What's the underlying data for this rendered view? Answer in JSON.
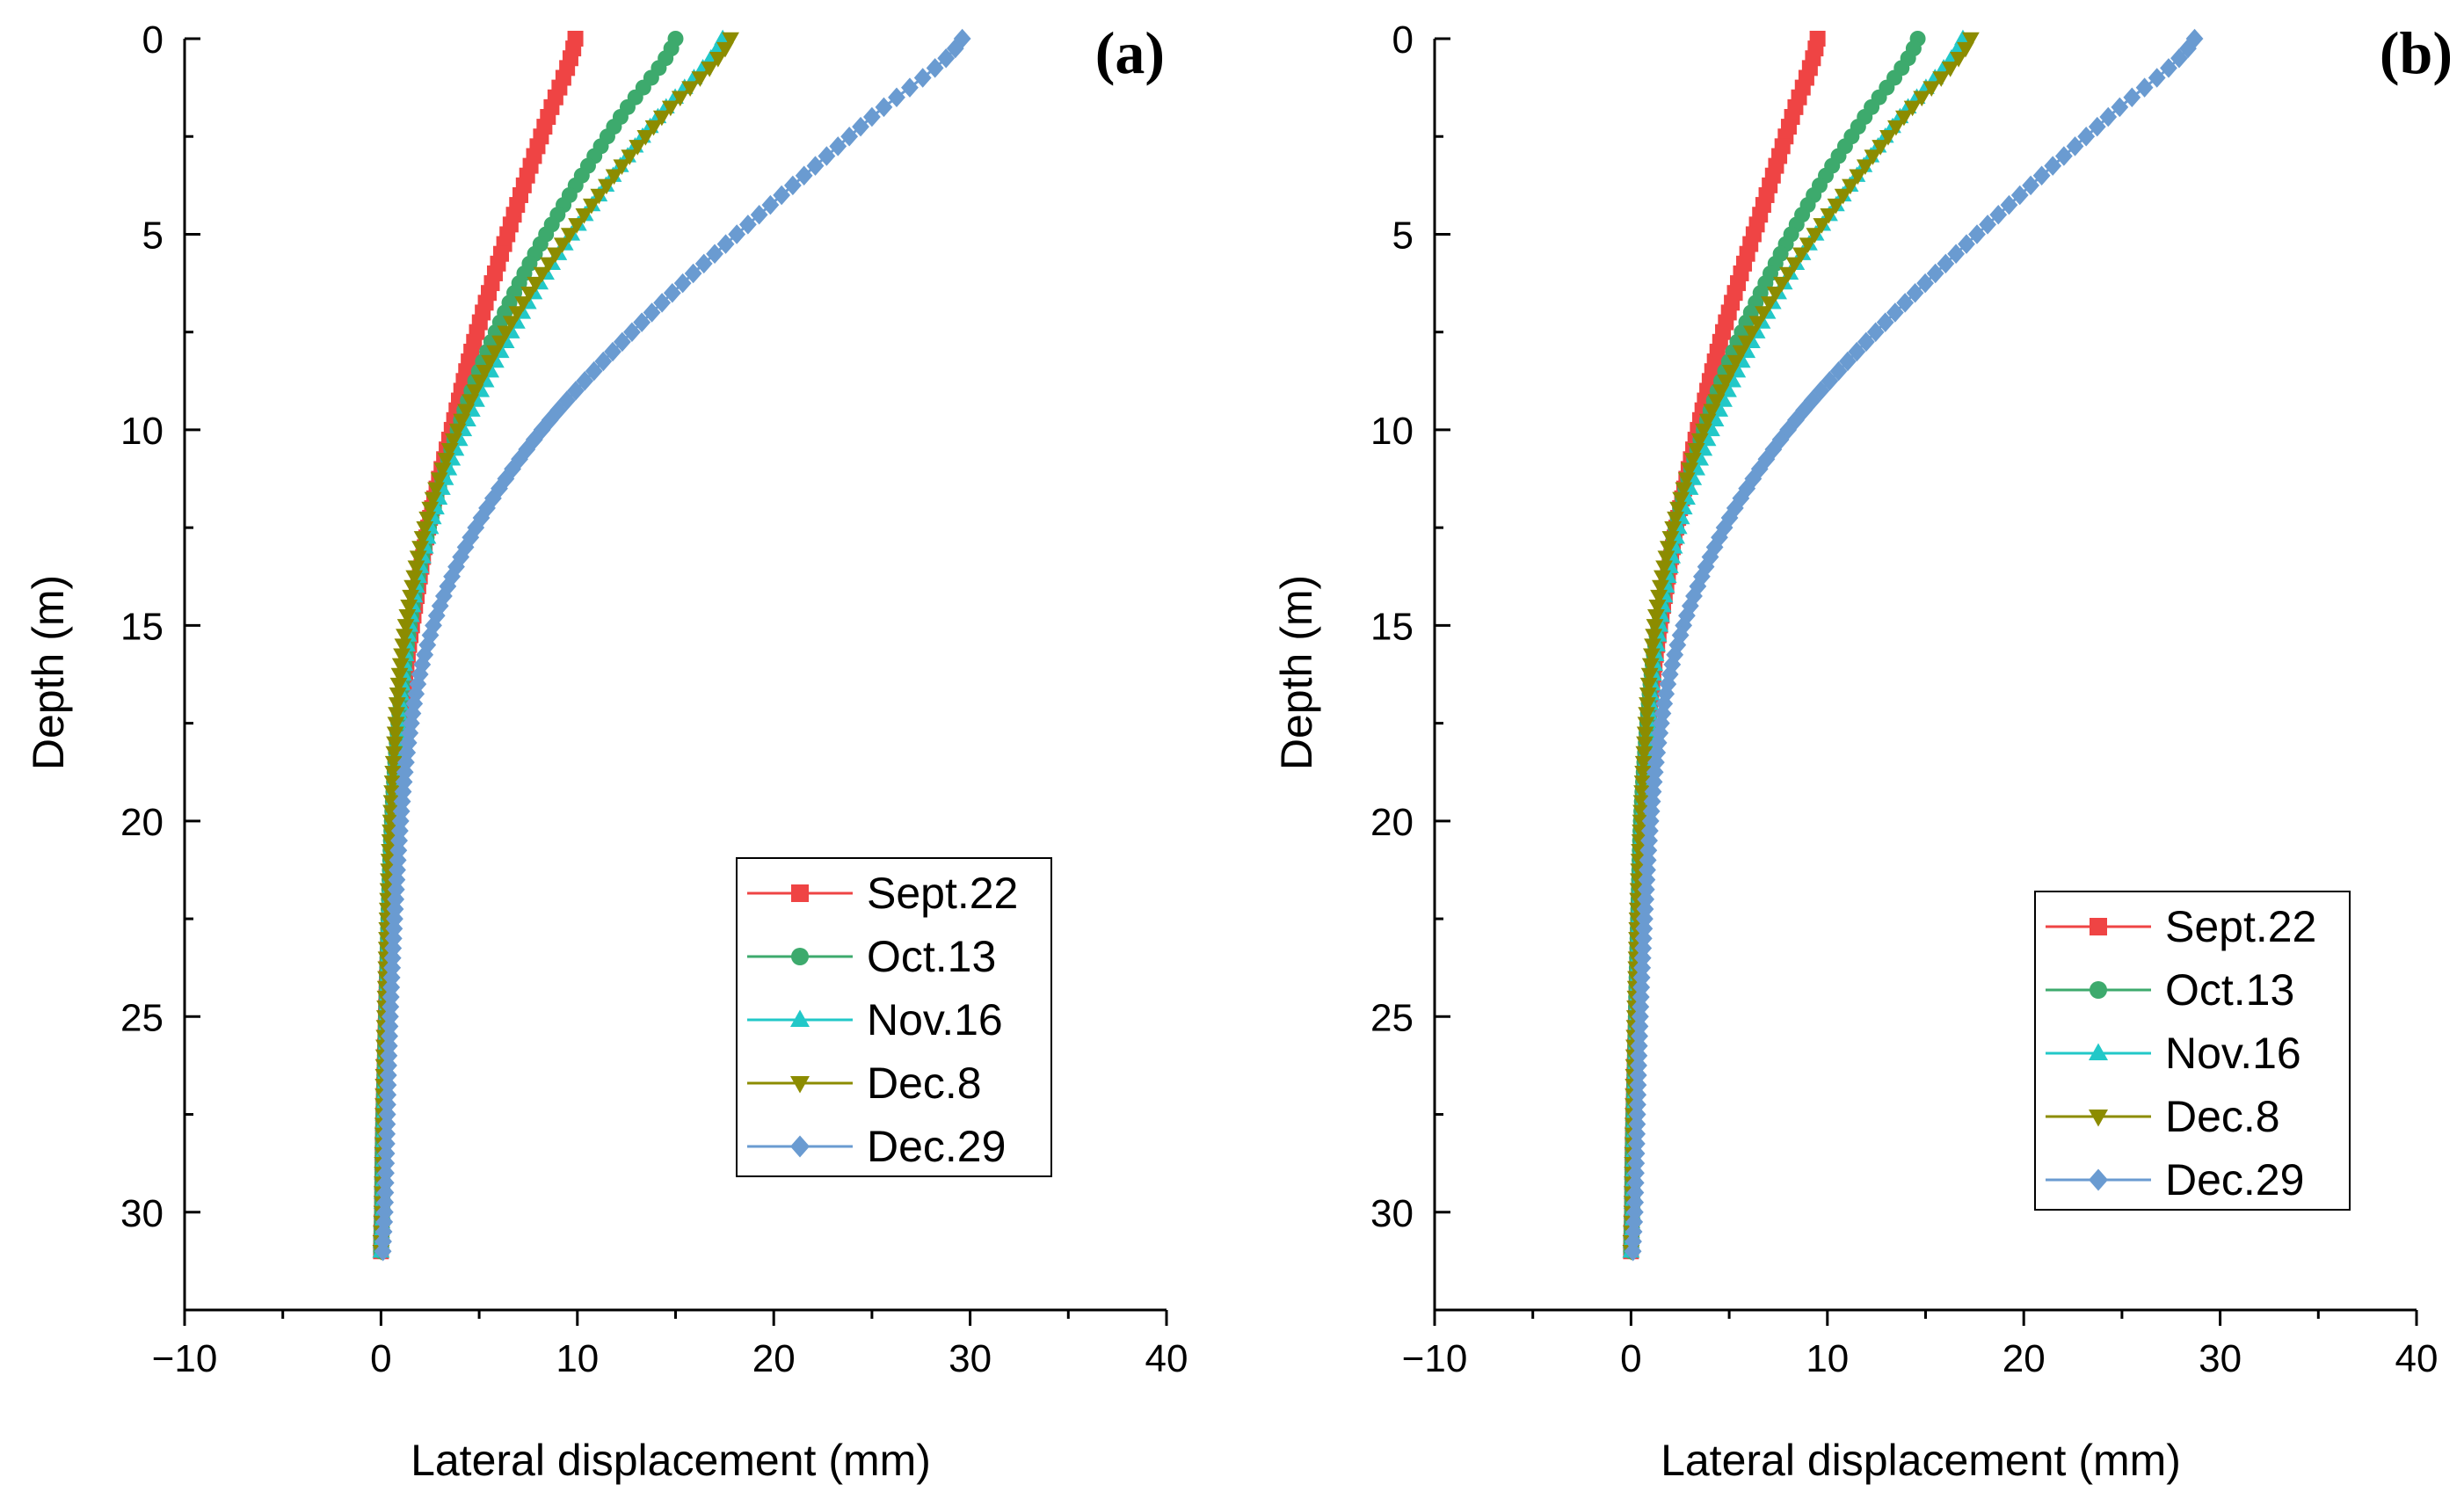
{
  "chart_data": [
    {
      "type": "line",
      "panel_label": "(a)",
      "xlabel": "Lateral displacement (mm)",
      "ylabel": "Depth (m)",
      "xlim": [
        -10,
        40
      ],
      "ylim": [
        0,
        32.5
      ],
      "y_inverted": true,
      "x_ticks": [
        "−10",
        "0",
        "10",
        "20",
        "30",
        "40"
      ],
      "y_ticks": [
        "0",
        "5",
        "10",
        "15",
        "20",
        "25",
        "30"
      ],
      "legend_position": "center-right",
      "depth": [
        0,
        2,
        4,
        6,
        8,
        10,
        12,
        14,
        16,
        18,
        20,
        22,
        24,
        26,
        28,
        30,
        31
      ],
      "series": [
        {
          "name": "Sept.22",
          "color": "#EF4444",
          "marker": "square",
          "values": [
            9.9,
            8.5,
            7.1,
            5.8,
            4.6,
            3.6,
            2.6,
            1.9,
            1.3,
            0.9,
            0.6,
            0.45,
            0.3,
            0.2,
            0.1,
            0.05,
            0.0
          ]
        },
        {
          "name": "Oct.13",
          "color": "#3DAA6D",
          "marker": "circle",
          "values": [
            15.0,
            12.2,
            9.6,
            7.3,
            5.4,
            3.9,
            2.7,
            1.8,
            1.2,
            0.8,
            0.55,
            0.4,
            0.3,
            0.2,
            0.1,
            0.05,
            0.0
          ]
        },
        {
          "name": "Nov.16",
          "color": "#22C8C8",
          "marker": "triangle-up",
          "values": [
            17.4,
            14.1,
            11.1,
            8.4,
            6.1,
            4.2,
            2.8,
            1.8,
            1.2,
            0.8,
            0.55,
            0.4,
            0.3,
            0.2,
            0.1,
            0.05,
            0.0
          ]
        },
        {
          "name": "Dec.8",
          "color": "#8C8C00",
          "marker": "triangle-down",
          "values": [
            17.8,
            14.3,
            11.1,
            8.2,
            5.8,
            3.9,
            2.5,
            1.6,
            1.0,
            0.7,
            0.5,
            0.35,
            0.25,
            0.15,
            0.1,
            0.05,
            0.0
          ]
        },
        {
          "name": "Dec.29",
          "color": "#6A9BD1",
          "marker": "diamond",
          "values": [
            29.6,
            25.0,
            20.4,
            15.9,
            11.8,
            8.2,
            5.4,
            3.4,
            2.1,
            1.4,
            1.0,
            0.75,
            0.55,
            0.4,
            0.3,
            0.2,
            0.1
          ]
        }
      ]
    },
    {
      "type": "line",
      "panel_label": "(b)",
      "xlabel": "Lateral displacement (mm)",
      "ylabel": "Depth (m)",
      "xlim": [
        -10,
        40
      ],
      "ylim": [
        0,
        32.5
      ],
      "y_inverted": true,
      "x_ticks": [
        "−10",
        "0",
        "10",
        "20",
        "30",
        "40"
      ],
      "y_ticks": [
        "0",
        "5",
        "10",
        "15",
        "20",
        "25",
        "30"
      ],
      "legend_position": "center-right",
      "depth": [
        0,
        2,
        4,
        6,
        8,
        10,
        12,
        14,
        16,
        18,
        20,
        22,
        24,
        26,
        28,
        30,
        31
      ],
      "series": [
        {
          "name": "Sept.22",
          "color": "#EF4444",
          "marker": "square",
          "values": [
            9.5,
            8.2,
            6.9,
            5.6,
            4.4,
            3.4,
            2.5,
            1.8,
            1.2,
            0.8,
            0.55,
            0.4,
            0.3,
            0.2,
            0.1,
            0.05,
            0.0
          ]
        },
        {
          "name": "Oct.13",
          "color": "#3DAA6D",
          "marker": "circle",
          "values": [
            14.6,
            11.9,
            9.3,
            7.1,
            5.2,
            3.7,
            2.5,
            1.7,
            1.1,
            0.75,
            0.5,
            0.38,
            0.28,
            0.2,
            0.1,
            0.05,
            0.0
          ]
        },
        {
          "name": "Nov.16",
          "color": "#22C8C8",
          "marker": "triangle-up",
          "values": [
            16.9,
            13.7,
            10.8,
            8.1,
            5.9,
            4.1,
            2.7,
            1.8,
            1.2,
            0.8,
            0.55,
            0.4,
            0.3,
            0.2,
            0.1,
            0.05,
            0.0
          ]
        },
        {
          "name": "Dec.8",
          "color": "#8C8C00",
          "marker": "triangle-down",
          "values": [
            17.3,
            13.9,
            10.8,
            8.0,
            5.6,
            3.7,
            2.4,
            1.5,
            1.0,
            0.7,
            0.5,
            0.35,
            0.25,
            0.15,
            0.1,
            0.05,
            0.0
          ]
        },
        {
          "name": "Dec.29",
          "color": "#6A9BD1",
          "marker": "diamond",
          "values": [
            28.7,
            24.3,
            19.8,
            15.5,
            11.5,
            8.0,
            5.3,
            3.4,
            2.1,
            1.4,
            1.0,
            0.75,
            0.55,
            0.4,
            0.3,
            0.2,
            0.1
          ]
        }
      ]
    }
  ]
}
